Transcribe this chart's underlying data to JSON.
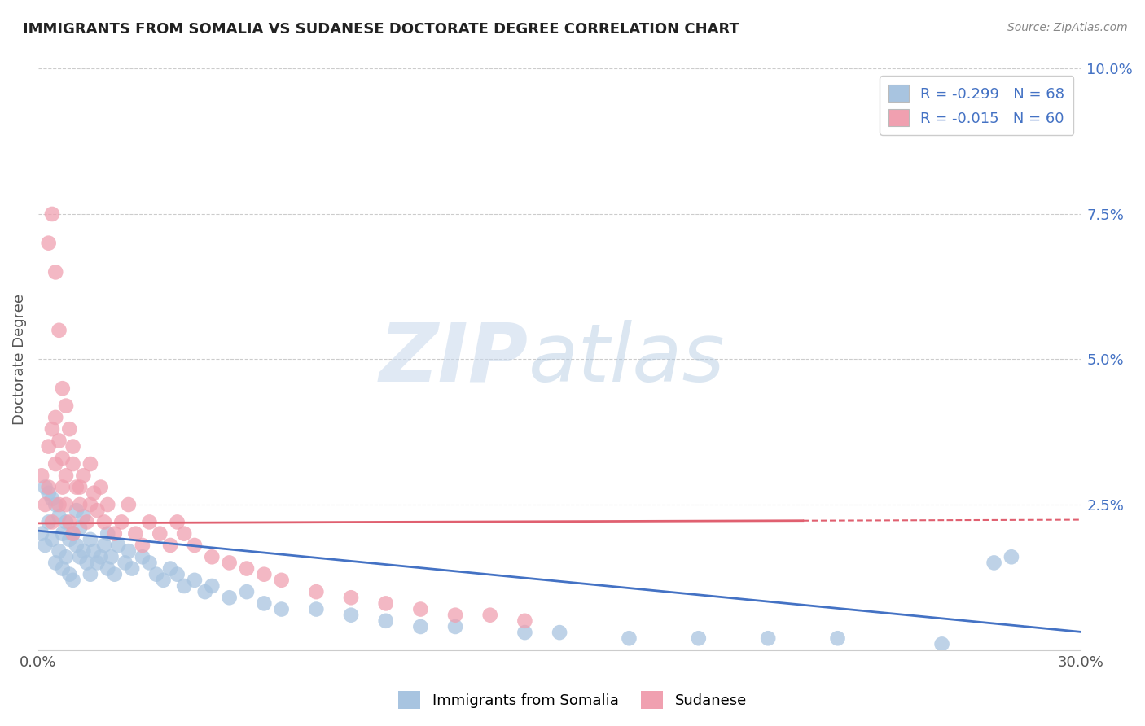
{
  "title": "IMMIGRANTS FROM SOMALIA VS SUDANESE DOCTORATE DEGREE CORRELATION CHART",
  "source": "Source: ZipAtlas.com",
  "ylabel": "Doctorate Degree",
  "x_series1_label": "Immigrants from Somalia",
  "x_series2_label": "Sudanese",
  "color_blue": "#a8c4e0",
  "color_pink": "#f0a0b0",
  "color_blue_dark": "#4472c4",
  "color_pink_dark": "#e06070",
  "color_text_blue": "#4472c4",
  "background_color": "#ffffff",
  "xlim": [
    0.0,
    0.3
  ],
  "ylim": [
    0.0,
    0.1
  ],
  "somalia_x": [
    0.001,
    0.002,
    0.003,
    0.004,
    0.005,
    0.005,
    0.006,
    0.006,
    0.007,
    0.007,
    0.008,
    0.008,
    0.009,
    0.009,
    0.01,
    0.01,
    0.011,
    0.011,
    0.012,
    0.012,
    0.013,
    0.013,
    0.014,
    0.015,
    0.015,
    0.016,
    0.017,
    0.018,
    0.019,
    0.02,
    0.02,
    0.021,
    0.022,
    0.023,
    0.025,
    0.026,
    0.027,
    0.03,
    0.032,
    0.034,
    0.036,
    0.038,
    0.04,
    0.042,
    0.045,
    0.048,
    0.05,
    0.055,
    0.06,
    0.065,
    0.07,
    0.08,
    0.09,
    0.1,
    0.11,
    0.12,
    0.14,
    0.15,
    0.17,
    0.19,
    0.21,
    0.23,
    0.26,
    0.275,
    0.28,
    0.004,
    0.003,
    0.002
  ],
  "somalia_y": [
    0.02,
    0.018,
    0.022,
    0.019,
    0.025,
    0.015,
    0.023,
    0.017,
    0.02,
    0.014,
    0.022,
    0.016,
    0.019,
    0.013,
    0.02,
    0.012,
    0.018,
    0.024,
    0.016,
    0.021,
    0.017,
    0.023,
    0.015,
    0.019,
    0.013,
    0.017,
    0.015,
    0.016,
    0.018,
    0.02,
    0.014,
    0.016,
    0.013,
    0.018,
    0.015,
    0.017,
    0.014,
    0.016,
    0.015,
    0.013,
    0.012,
    0.014,
    0.013,
    0.011,
    0.012,
    0.01,
    0.011,
    0.009,
    0.01,
    0.008,
    0.007,
    0.007,
    0.006,
    0.005,
    0.004,
    0.004,
    0.003,
    0.003,
    0.002,
    0.002,
    0.002,
    0.002,
    0.001,
    0.015,
    0.016,
    0.026,
    0.027,
    0.028
  ],
  "sudanese_x": [
    0.001,
    0.002,
    0.003,
    0.003,
    0.004,
    0.004,
    0.005,
    0.005,
    0.006,
    0.006,
    0.007,
    0.007,
    0.008,
    0.008,
    0.009,
    0.01,
    0.01,
    0.011,
    0.012,
    0.013,
    0.014,
    0.015,
    0.016,
    0.017,
    0.018,
    0.019,
    0.02,
    0.022,
    0.024,
    0.026,
    0.028,
    0.03,
    0.032,
    0.035,
    0.038,
    0.04,
    0.042,
    0.045,
    0.05,
    0.055,
    0.06,
    0.065,
    0.07,
    0.08,
    0.09,
    0.1,
    0.11,
    0.12,
    0.13,
    0.14,
    0.003,
    0.004,
    0.005,
    0.006,
    0.007,
    0.008,
    0.009,
    0.01,
    0.012,
    0.015
  ],
  "sudanese_y": [
    0.03,
    0.025,
    0.035,
    0.028,
    0.038,
    0.022,
    0.032,
    0.04,
    0.036,
    0.025,
    0.033,
    0.028,
    0.025,
    0.03,
    0.022,
    0.035,
    0.02,
    0.028,
    0.025,
    0.03,
    0.022,
    0.032,
    0.027,
    0.024,
    0.028,
    0.022,
    0.025,
    0.02,
    0.022,
    0.025,
    0.02,
    0.018,
    0.022,
    0.02,
    0.018,
    0.022,
    0.02,
    0.018,
    0.016,
    0.015,
    0.014,
    0.013,
    0.012,
    0.01,
    0.009,
    0.008,
    0.007,
    0.006,
    0.006,
    0.005,
    0.07,
    0.075,
    0.065,
    0.055,
    0.045,
    0.042,
    0.038,
    0.032,
    0.028,
    0.025
  ]
}
